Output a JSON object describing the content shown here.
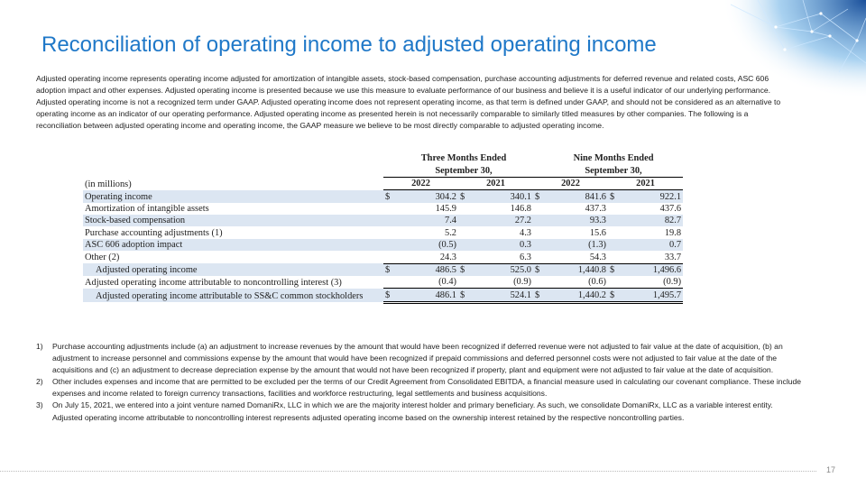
{
  "header": {
    "title": "Reconciliation of operating income to adjusted operating income"
  },
  "intro": "Adjusted operating income represents operating income adjusted for amortization of intangible assets, stock-based compensation, purchase accounting adjustments for deferred revenue and related costs, ASC 606 adoption impact and other expenses.  Adjusted operating income is presented because we use this measure to evaluate performance of our business and believe it is a useful indicator of our underlying performance.  Adjusted operating income is not a recognized term under GAAP.  Adjusted operating income does not represent operating income, as that term is defined under GAAP, and should not be considered as an alternative to operating income as an indicator of our operating performance.  Adjusted operating income as presented herein is not necessarily comparable to similarly titled measures by other companies.  The following is a reconciliation between adjusted operating income and operating income, the GAAP measure we believe to be most directly comparable to adjusted operating income.",
  "table": {
    "groups": [
      {
        "line1": "Three Months Ended",
        "line2": "September 30,"
      },
      {
        "line1": "Nine Months Ended",
        "line2": "September 30,"
      }
    ],
    "unit": "(in millions)",
    "years": [
      "2022",
      "2021",
      "2022",
      "2021"
    ],
    "currency": "$",
    "rows": [
      {
        "label": "Operating income",
        "values": [
          "304.2",
          "340.1",
          "841.6",
          "922.1"
        ],
        "currency": true
      },
      {
        "label": "Amortization of intangible assets",
        "values": [
          "145.9",
          "146.8",
          "437.3",
          "437.6"
        ]
      },
      {
        "label": "Stock-based compensation",
        "values": [
          "7.4",
          "27.2",
          "93.3",
          "82.7"
        ]
      },
      {
        "label": "Purchase accounting adjustments (1)",
        "values": [
          "5.2",
          "4.3",
          "15.6",
          "19.8"
        ]
      },
      {
        "label": "ASC 606 adoption impact",
        "values": [
          "(0.5)",
          "0.3",
          "(1.3)",
          "0.7"
        ]
      },
      {
        "label": "Other (2)",
        "values": [
          "24.3",
          "6.3",
          "54.3",
          "33.7"
        ]
      },
      {
        "label": "Adjusted operating income",
        "values": [
          "486.5",
          "525.0",
          "1,440.8",
          "1,496.6"
        ],
        "currency": true,
        "indent": true
      },
      {
        "label": "Adjusted operating income attributable to noncontrolling interest (3)",
        "values": [
          "(0.4)",
          "(0.9)",
          "(0.6)",
          "(0.9)"
        ]
      },
      {
        "label": "Adjusted operating income attributable to SS&C common stockholders",
        "values": [
          "486.1",
          "524.1",
          "1,440.2",
          "1,495.7"
        ],
        "currency": true,
        "indent": true
      }
    ]
  },
  "footnotes": [
    {
      "marker": "1)",
      "text": "Purchase accounting adjustments include (a) an adjustment to increase revenues by the amount that would have been recognized if deferred revenue were not adjusted to fair value at the date of acquisition, (b) an adjustment to increase personnel and commissions expense by the amount that would have been recognized if prepaid commissions and deferred personnel costs were not adjusted to fair value at the date of the acquisitions and (c) an adjustment to decrease depreciation expense by the amount that would not have been recognized if property, plant and equipment were not adjusted to fair value at the date of acquisition."
    },
    {
      "marker": "2)",
      "text": "Other includes expenses and income that are permitted to be excluded per the terms of our Credit Agreement from Consolidated  EBITDA, a financial measure used in calculating our covenant compliance. These include expenses and income related to  foreign currency transactions, facilities and workforce restructuring, legal settlements and business acquisitions."
    },
    {
      "marker": "3)",
      "text": "On July 15, 2021, we entered into a joint venture named DomaniRx, LLC in which we are the majority interest holder and primary beneficiary. As such, we consolidate DomaniRx, LLC as a variable interest entity. Adjusted operating income  attributable to noncontrolling interest represents adjusted operating income based on the ownership interest retained by the respective noncontrolling parties."
    }
  ],
  "footer": {
    "page_number": "17"
  }
}
